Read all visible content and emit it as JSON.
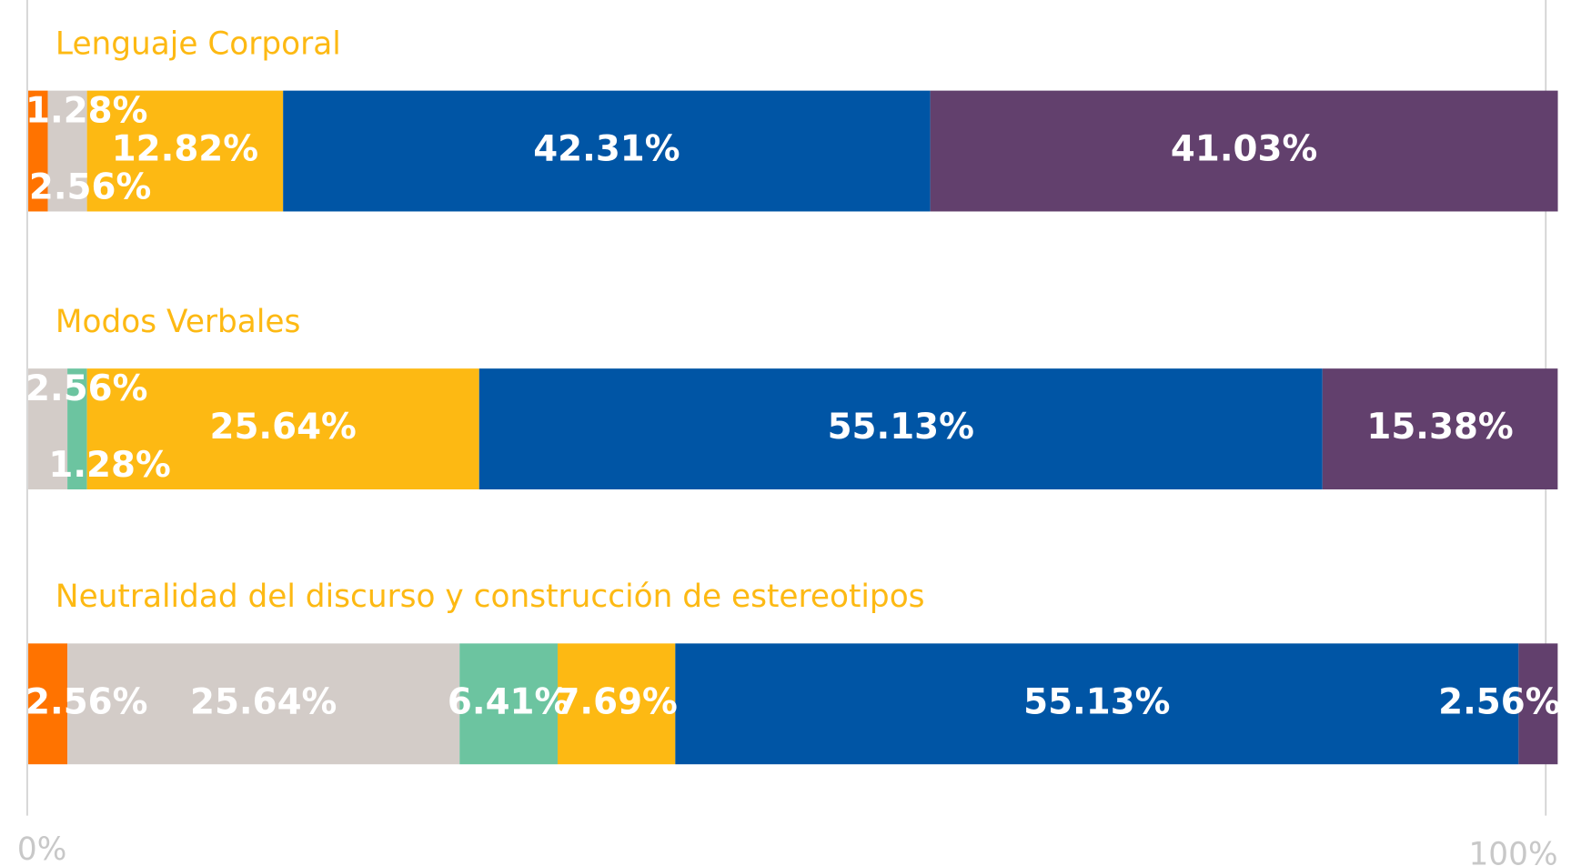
{
  "chart_data": {
    "type": "stacked_bar_horizontal",
    "categories": [
      "Lenguaje Corporal",
      "Modos Verbales",
      "Neutralidad del discurso y construcción de estereotipos"
    ],
    "series": [
      {
        "color": "#ff7300",
        "values": [
          1.28,
          null,
          2.56
        ],
        "value_labels": [
          "1.28%",
          null,
          "2.56%"
        ]
      },
      {
        "color": "#d3ccc8",
        "values": [
          2.56,
          2.56,
          25.64
        ],
        "value_labels": [
          "2.56%",
          "2.56%",
          "25.64%"
        ]
      },
      {
        "color": "#6cc4a0",
        "values": [
          null,
          1.28,
          6.41
        ],
        "value_labels": [
          null,
          "1.28%",
          "6.41%"
        ]
      },
      {
        "color": "#fdb913",
        "values": [
          12.82,
          25.64,
          7.69
        ],
        "value_labels": [
          "12.82%",
          "25.64%",
          "7.69%"
        ]
      },
      {
        "color": "#0055a5",
        "values": [
          42.31,
          55.13,
          55.13
        ],
        "value_labels": [
          "42.31%",
          "55.13%",
          "55.13%"
        ]
      },
      {
        "color": "#62406d",
        "values": [
          41.03,
          15.38,
          2.56
        ],
        "value_labels": [
          "41.03%",
          "15.38%",
          "2.56%"
        ]
      }
    ],
    "xlim": [
      0,
      100
    ],
    "xticks": [
      {
        "value": 0,
        "label": "0%"
      },
      {
        "value": 100,
        "label": "100%"
      }
    ]
  }
}
